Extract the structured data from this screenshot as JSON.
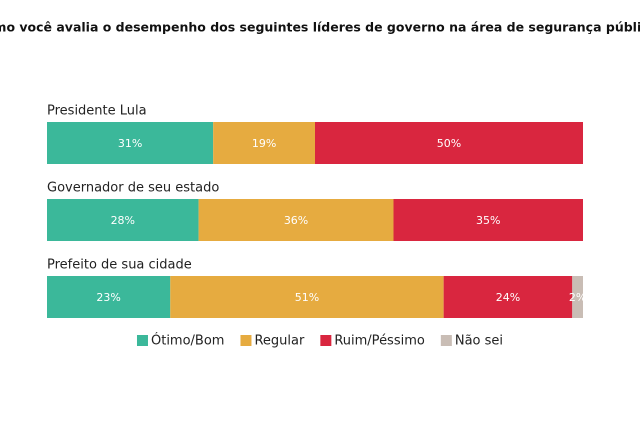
{
  "chart_data": {
    "type": "bar",
    "orientation": "horizontal",
    "stacked": true,
    "title": "Como você avalia o desempenho dos seguintes líderes de governo na área de segurança pública?",
    "categories": [
      "Presidente Lula",
      "Governador de seu estado",
      "Prefeito de sua cidade"
    ],
    "series": [
      {
        "name": "Ótimo/Bom",
        "color": "#3bb89a",
        "values": [
          31,
          28,
          23
        ],
        "value_labels": [
          "31%",
          "28%",
          "23%"
        ]
      },
      {
        "name": "Regular",
        "color": "#e6ab40",
        "values": [
          19,
          36,
          51
        ],
        "value_labels": [
          "19%",
          "36%",
          "51%"
        ]
      },
      {
        "name": "Ruim/Péssimo",
        "color": "#d9263f",
        "values": [
          50,
          35,
          24
        ],
        "value_labels": [
          "50%",
          "35%",
          "24%"
        ]
      },
      {
        "name": "Não sei",
        "color": "#c9bdb5",
        "values": [
          0,
          0,
          2
        ],
        "value_labels": [
          null,
          null,
          "2%"
        ]
      }
    ],
    "legend": "bottom"
  }
}
